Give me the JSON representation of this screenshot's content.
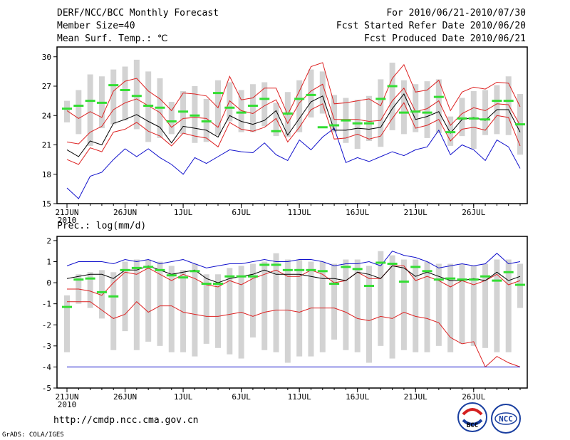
{
  "header": {
    "title": "DERF/NCC/BCC Monthly Forecast",
    "member_size": "Member Size=40",
    "variable": "Mean Surf. Temp.: ℃",
    "period": "For 2010/06/21-2010/07/30",
    "refer_date": "Fcst Started Refer Date 2010/06/20",
    "produced_date": "Fcst Produced Date 2010/06/21"
  },
  "footer": {
    "url": "http://cmdp.ncc.cma.gov.cn",
    "credit": "GrADS: COLA/IGES",
    "logo_left_text": "BCC",
    "logo_right_text": "NCC"
  },
  "colors": {
    "box": "#d3d3d3",
    "median": "#33dd33",
    "mean": "#000000",
    "spread": "#dd2222",
    "extreme": "#1111cc"
  },
  "chart_data": [
    {
      "type": "box",
      "title": "Mean Surf. Temp.: ℃",
      "x_ticks": [
        "21JUN",
        "26JUN",
        "1JUL",
        "6JUL",
        "11JUL",
        "16JUL",
        "21JUL",
        "26JUL"
      ],
      "x_tick_days": [
        1,
        6,
        11,
        16,
        21,
        26,
        31,
        36
      ],
      "x_year_label": "2010",
      "ylim": [
        15,
        31
      ],
      "y_ticks": [
        15,
        18,
        21,
        24,
        27,
        30
      ],
      "days": [
        1,
        2,
        3,
        4,
        5,
        6,
        7,
        8,
        9,
        10,
        11,
        12,
        13,
        14,
        15,
        16,
        17,
        18,
        19,
        20,
        21,
        22,
        23,
        24,
        25,
        26,
        27,
        28,
        29,
        30,
        31,
        32,
        33,
        34,
        35,
        36,
        37,
        38,
        39,
        40
      ],
      "series": [
        {
          "name": "max",
          "values": [
            16.6,
            15.5,
            17.8,
            18.2,
            19.5,
            20.6,
            19.8,
            20.6,
            19.7,
            19.0,
            18.0,
            19.7,
            19.1,
            19.8,
            20.5,
            20.3,
            20.2,
            21.2,
            20.0,
            19.4,
            21.5,
            20.5,
            21.8,
            22.7,
            19.2,
            19.7,
            19.3,
            19.8,
            20.3,
            19.9,
            20.5,
            20.8,
            22.5,
            20.0,
            21.0,
            20.5,
            19.4,
            21.5,
            20.8,
            18.6
          ]
        },
        {
          "name": "upper",
          "values": [
            24.5,
            23.7,
            24.4,
            23.8,
            26.5,
            27.5,
            27.8,
            26.5,
            25.7,
            24.5,
            26.3,
            26.2,
            26.0,
            24.8,
            28.0,
            25.6,
            25.8,
            26.8,
            26.8,
            24.1,
            26.5,
            29.0,
            29.4,
            25.2,
            25.3,
            25.5,
            25.7,
            25.0,
            27.8,
            29.2,
            26.4,
            26.6,
            27.6,
            24.5,
            26.4,
            26.9,
            26.7,
            27.4,
            27.3,
            24.9
          ]
        },
        {
          "name": "p90",
          "values": [
            21.3,
            21.1,
            22.3,
            22.9,
            24.6,
            25.3,
            25.7,
            25.0,
            24.3,
            22.8,
            23.7,
            23.8,
            23.7,
            22.8,
            25.5,
            24.5,
            24.2,
            25.0,
            25.6,
            23.2,
            25.3,
            26.5,
            27.2,
            23.6,
            23.6,
            23.6,
            23.4,
            23.5,
            25.5,
            26.8,
            24.4,
            24.7,
            25.5,
            23.0,
            24.2,
            24.8,
            24.5,
            25.2,
            25.1,
            23.0
          ]
        },
        {
          "name": "mean",
          "values": [
            20.5,
            19.8,
            21.4,
            21.0,
            23.2,
            23.6,
            24.1,
            23.4,
            22.8,
            21.2,
            22.9,
            22.7,
            22.5,
            21.8,
            24.0,
            23.4,
            23.1,
            23.5,
            24.5,
            22.0,
            23.7,
            25.4,
            26.0,
            22.5,
            22.5,
            22.7,
            22.6,
            22.8,
            24.7,
            26.2,
            23.6,
            23.9,
            24.4,
            22.2,
            23.6,
            23.8,
            23.5,
            24.6,
            24.6,
            22.3
          ]
        },
        {
          "name": "p10",
          "values": [
            19.5,
            19.0,
            20.7,
            20.3,
            22.3,
            22.6,
            23.3,
            22.4,
            21.9,
            20.9,
            22.2,
            21.9,
            21.7,
            20.8,
            23.3,
            22.6,
            22.4,
            22.8,
            23.7,
            21.3,
            22.8,
            24.6,
            25.2,
            21.6,
            21.7,
            22.1,
            21.6,
            21.9,
            23.7,
            25.3,
            22.7,
            23.0,
            23.6,
            21.4,
            22.6,
            22.8,
            22.5,
            24.0,
            23.8,
            20.9
          ]
        },
        {
          "name": "median",
          "values": [
            24.7,
            25.0,
            25.5,
            25.3,
            27.1,
            26.6,
            26.0,
            25.0,
            24.8,
            23.4,
            24.4,
            24.0,
            23.4,
            26.3,
            24.8,
            24.3,
            25.0,
            25.7,
            22.4,
            24.2,
            25.7,
            26.1,
            22.8,
            23.0,
            23.5,
            23.2,
            23.2,
            25.7,
            27.0,
            24.3,
            24.4,
            24.3,
            25.9,
            22.3,
            23.7,
            23.7,
            23.6,
            25.5,
            25.5,
            23.1
          ]
        },
        {
          "name": "box_top",
          "values": [
            25.5,
            26.6,
            28.2,
            28.0,
            28.7,
            29.0,
            29.7,
            28.5,
            27.8,
            25.4,
            26.5,
            27.0,
            25.7,
            27.6,
            27.4,
            26.6,
            27.2,
            27.4,
            25.3,
            26.4,
            27.6,
            28.7,
            28.5,
            26.1,
            25.8,
            25.6,
            26.0,
            27.7,
            29.4,
            27.6,
            27.2,
            27.5,
            27.7,
            23.9,
            25.8,
            26.5,
            26.6,
            27.1,
            28.0,
            26.2
          ]
        },
        {
          "name": "box_bottom",
          "values": [
            23.3,
            22.1,
            20.9,
            22.7,
            23.1,
            23.5,
            22.6,
            21.3,
            21.7,
            22.1,
            22.1,
            21.2,
            21.3,
            22.0,
            23.4,
            22.3,
            22.3,
            22.9,
            21.9,
            21.8,
            22.3,
            23.8,
            24.2,
            22.3,
            21.2,
            20.6,
            21.4,
            20.8,
            22.5,
            22.1,
            22.3,
            21.7,
            22.2,
            20.9,
            21.9,
            20.6,
            22.0,
            22.1,
            22.0,
            20.0
          ]
        }
      ]
    },
    {
      "type": "box",
      "title": "Prec.: log(mm/d)",
      "x_ticks": [
        "21JUN",
        "26JUN",
        "1JUL",
        "6JUL",
        "11JUL",
        "16JUL",
        "21JUL",
        "26JUL"
      ],
      "x_tick_days": [
        1,
        6,
        11,
        16,
        21,
        26,
        31,
        36
      ],
      "x_year_label": "2010",
      "ylim": [
        -5,
        2.2
      ],
      "y_ticks": [
        -5,
        -4,
        -3,
        -2,
        -1,
        0,
        1,
        2
      ],
      "days": [
        1,
        2,
        3,
        4,
        5,
        6,
        7,
        8,
        9,
        10,
        11,
        12,
        13,
        14,
        15,
        16,
        17,
        18,
        19,
        20,
        21,
        22,
        23,
        24,
        25,
        26,
        27,
        28,
        29,
        30,
        31,
        32,
        33,
        34,
        35,
        36,
        37,
        38,
        39,
        40
      ],
      "series": [
        {
          "name": "max",
          "values": [
            0.8,
            1.0,
            1.0,
            1.0,
            0.9,
            1.1,
            1.0,
            1.1,
            0.9,
            1.0,
            1.1,
            0.9,
            0.7,
            0.8,
            0.9,
            0.9,
            1.0,
            1.1,
            1.0,
            1.0,
            1.1,
            1.1,
            1.0,
            0.8,
            0.9,
            0.9,
            1.0,
            0.8,
            1.5,
            1.3,
            1.2,
            1.0,
            0.7,
            0.8,
            0.9,
            0.8,
            0.9,
            1.4,
            0.9,
            1.0
          ]
        },
        {
          "name": "upper",
          "values": [
            -0.3,
            -0.3,
            -0.4,
            -0.6,
            0.0,
            0.5,
            0.4,
            0.7,
            0.4,
            0.1,
            0.4,
            0.2,
            -0.1,
            -0.2,
            0.1,
            -0.1,
            0.2,
            0.4,
            0.6,
            0.3,
            0.3,
            0.6,
            0.4,
            0.0,
            0.1,
            0.5,
            0.2,
            0.2,
            0.8,
            0.8,
            0.1,
            0.3,
            0.1,
            -0.2,
            0.1,
            -0.1,
            0.1,
            0.4,
            -0.1,
            0.1
          ]
        },
        {
          "name": "mean",
          "values": [
            0.2,
            0.3,
            0.4,
            0.4,
            0.2,
            0.6,
            0.6,
            0.8,
            0.6,
            0.4,
            0.5,
            0.6,
            0.2,
            0.0,
            0.2,
            0.3,
            0.4,
            0.6,
            0.4,
            0.4,
            0.4,
            0.3,
            0.2,
            0.2,
            0.1,
            0.5,
            0.4,
            0.2,
            0.8,
            0.7,
            0.3,
            0.5,
            0.3,
            0.1,
            0.1,
            0.2,
            0.1,
            0.5,
            0.1,
            0.3
          ]
        },
        {
          "name": "lower",
          "values": [
            -0.9,
            -0.9,
            -0.9,
            -1.3,
            -1.7,
            -1.5,
            -0.9,
            -1.4,
            -1.1,
            -1.1,
            -1.4,
            -1.5,
            -1.6,
            -1.6,
            -1.5,
            -1.4,
            -1.6,
            -1.4,
            -1.3,
            -1.3,
            -1.4,
            -1.2,
            -1.2,
            -1.2,
            -1.4,
            -1.7,
            -1.8,
            -1.6,
            -1.7,
            -1.4,
            -1.6,
            -1.7,
            -1.9,
            -2.6,
            -2.9,
            -2.8,
            -4.0,
            -3.5,
            -3.8,
            -4.0
          ]
        },
        {
          "name": "min",
          "values": [
            -4.0,
            -4.0,
            -4.0,
            -4.0,
            -4.0,
            -4.0,
            -4.0,
            -4.0,
            -4.0,
            -4.0,
            -4.0,
            -4.0,
            -4.0,
            -4.0,
            -4.0,
            -4.0,
            -4.0,
            -4.0,
            -4.0,
            -4.0,
            -4.0,
            -4.0,
            -4.0,
            -4.0,
            -4.0,
            -4.0,
            -4.0,
            -4.0,
            -4.0,
            -4.0,
            -4.0,
            -4.0,
            -4.0,
            -4.0,
            -4.0,
            -4.0,
            -4.0,
            -4.0,
            -4.0,
            -4.0
          ]
        },
        {
          "name": "median",
          "values": [
            -1.15,
            0.15,
            0.2,
            -0.45,
            -0.65,
            0.6,
            0.7,
            0.75,
            0.6,
            0.35,
            0.25,
            0.55,
            -0.05,
            -0.05,
            0.3,
            0.3,
            0.3,
            0.85,
            0.85,
            0.6,
            0.6,
            0.6,
            0.55,
            -0.05,
            0.75,
            0.65,
            -0.15,
            0.95,
            0.9,
            0.05,
            0.75,
            0.55,
            0.15,
            0.2,
            0.15,
            0.15,
            0.3,
            0.1,
            0.5,
            -0.1
          ]
        },
        {
          "name": "box_top",
          "values": [
            -0.6,
            0.4,
            0.5,
            0.6,
            0.5,
            1.0,
            1.1,
            1.1,
            1.0,
            0.8,
            0.6,
            0.9,
            0.4,
            0.4,
            0.7,
            0.8,
            0.9,
            1.0,
            1.4,
            1.1,
            1.1,
            1.0,
            1.0,
            0.9,
            1.1,
            1.1,
            0.8,
            1.5,
            1.3,
            1.1,
            1.1,
            1.0,
            0.9,
            0.9,
            0.9,
            0.8,
            0.9,
            1.1,
            1.1,
            0.9
          ]
        },
        {
          "name": "box_bottom",
          "values": [
            -3.3,
            -1.0,
            -1.2,
            -1.7,
            -3.2,
            -2.3,
            -3.2,
            -2.8,
            -3.0,
            -3.3,
            -3.3,
            -3.5,
            -2.9,
            -3.1,
            -3.4,
            -3.6,
            -2.6,
            -3.2,
            -3.3,
            -3.8,
            -3.5,
            -3.5,
            -3.3,
            -2.7,
            -3.2,
            -3.3,
            -3.8,
            -3.0,
            -3.6,
            -3.2,
            -3.3,
            -3.3,
            -3.0,
            -3.3,
            -2.9,
            -3.0,
            -3.1,
            -3.3,
            -3.3,
            -1.2
          ]
        }
      ]
    }
  ]
}
